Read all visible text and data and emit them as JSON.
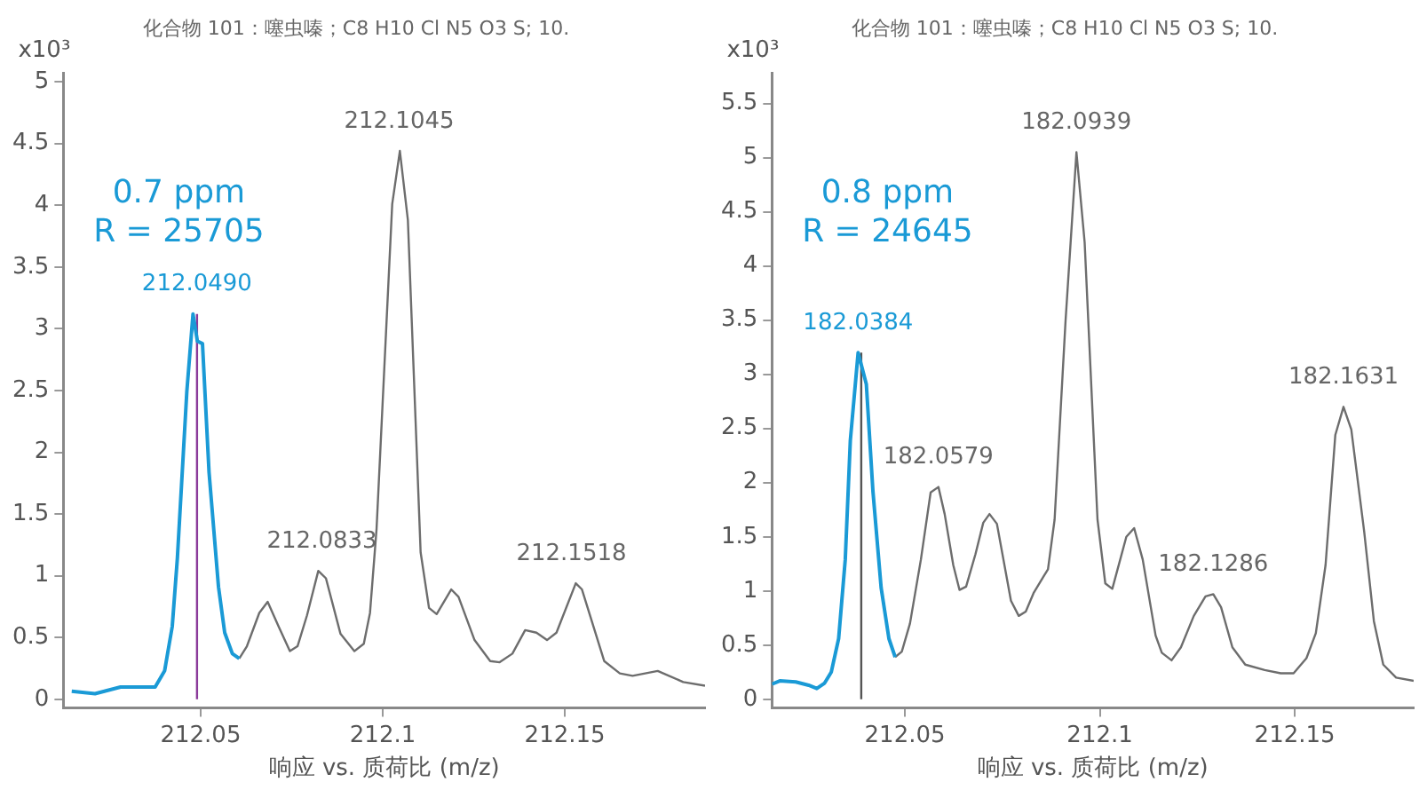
{
  "chart_data": [
    {
      "type": "line",
      "title": "化合物 101：噻虫嗪；C8 H10 Cl N5 O3 S; 10.",
      "xlabel": "响应 vs. 质荷比 (m/z)",
      "ylabel": "x10³",
      "xlim": [
        212.0123,
        212.1885
      ],
      "xticks": [
        212.05,
        212.1,
        212.15
      ],
      "ylim": [
        -0.07,
        5.07
      ],
      "yticks": [
        0,
        0.5,
        1,
        1.5,
        2,
        2.5,
        3,
        3.5,
        4,
        4.5,
        5
      ],
      "grid": false,
      "legend": false,
      "marker": "none",
      "line_style": "solid",
      "series": [
        {
          "color": "#1a9ad6",
          "x": [
            212.0146,
            212.021,
            212.028,
            212.0375,
            212.0401,
            212.0422,
            212.0436,
            212.0462,
            212.0479,
            212.0491,
            212.0505,
            212.0523,
            212.0549,
            212.0566,
            212.0587,
            212.0606
          ],
          "values": [
            0.065,
            0.046,
            0.1,
            0.1,
            0.23,
            0.59,
            1.14,
            2.49,
            3.12,
            2.9,
            2.88,
            1.84,
            0.91,
            0.54,
            0.37,
            0.33
          ]
        },
        {
          "color": "#6d6d6d",
          "x": [
            212.0606,
            212.0627,
            212.0661,
            212.0684,
            212.0714,
            212.0745,
            212.0766,
            212.0792,
            212.0823,
            212.0844,
            212.0884,
            212.0922,
            212.0948,
            212.0965,
            212.0983,
            212.1026,
            212.1047,
            212.1069,
            212.1104,
            212.1127,
            212.1148,
            212.1188,
            212.1208,
            212.1252,
            212.1295,
            212.1321,
            212.1356,
            212.1391,
            212.1422,
            212.1451,
            212.1477,
            212.153,
            212.1547,
            212.1608,
            212.1651,
            212.1686,
            212.1755,
            212.1825,
            212.1885
          ],
          "values": [
            0.33,
            0.43,
            0.7,
            0.79,
            0.59,
            0.39,
            0.43,
            0.68,
            1.04,
            0.98,
            0.53,
            0.39,
            0.45,
            0.7,
            1.38,
            4.01,
            4.44,
            3.88,
            1.19,
            0.74,
            0.69,
            0.89,
            0.83,
            0.48,
            0.31,
            0.3,
            0.37,
            0.56,
            0.54,
            0.48,
            0.54,
            0.94,
            0.89,
            0.31,
            0.21,
            0.19,
            0.23,
            0.14,
            0.11
          ]
        }
      ],
      "ref_lines": [
        {
          "axis": "x",
          "value": 212.049,
          "color": "#8b3a9a"
        }
      ],
      "annotations": [
        "0.7 ppm",
        "R = 25705",
        {
          "text": "212.0490",
          "x": 212.049,
          "y": 3.12
        },
        {
          "text": "212.0833",
          "x": 212.0833,
          "y": 1.04
        },
        {
          "text": "212.1045",
          "x": 212.1045,
          "y": 4.44
        },
        {
          "text": "212.1518",
          "x": 212.1518,
          "y": 0.94
        }
      ]
    },
    {
      "type": "line",
      "title": "化合物 101：噻虫嗪；C8 H10 Cl N5 O3 S; 10.",
      "xlabel": "响应 vs. 质荷比 (m/z)",
      "ylabel": "x10³",
      "xlim": [
        212.0159,
        212.1805
      ],
      "xticks": [
        212.05,
        212.1,
        212.15
      ],
      "ylim": [
        -0.08,
        5.78
      ],
      "yticks": [
        0,
        0.5,
        1,
        1.5,
        2,
        2.5,
        3,
        3.5,
        4,
        4.5,
        5,
        5.5
      ],
      "grid": false,
      "legend": false,
      "marker": "none",
      "line_style": "solid",
      "series": [
        {
          "color": "#1a9ad6",
          "x": [
            212.0159,
            212.0179,
            212.022,
            212.0253,
            212.0274,
            212.0294,
            212.0311,
            212.033,
            212.0347,
            212.036,
            212.038,
            212.0401,
            212.0418,
            212.0439,
            212.0459,
            212.0475
          ],
          "values": [
            0.14,
            0.17,
            0.16,
            0.13,
            0.1,
            0.15,
            0.25,
            0.56,
            1.29,
            2.39,
            3.2,
            2.91,
            1.92,
            1.03,
            0.56,
            0.39
          ]
        },
        {
          "color": "#6d6d6d",
          "x": [
            212.0475,
            212.0492,
            212.0513,
            212.0541,
            212.0566,
            212.0586,
            212.0602,
            212.0624,
            212.064,
            212.0657,
            212.0681,
            212.0701,
            212.0717,
            212.0736,
            212.0772,
            212.0792,
            212.081,
            212.083,
            212.0855,
            212.0867,
            212.0884,
            212.0912,
            212.094,
            212.0961,
            212.0994,
            212.1014,
            212.1032,
            212.1068,
            212.1088,
            212.111,
            212.1143,
            212.1159,
            212.1184,
            212.1208,
            212.1241,
            212.1271,
            212.1291,
            212.1311,
            212.134,
            212.1373,
            212.1423,
            212.1464,
            212.1497,
            212.153,
            212.1554,
            212.1579,
            212.1604,
            212.1625,
            212.1645,
            212.1678,
            212.1703,
            212.1727,
            212.176,
            212.1805
          ],
          "values": [
            0.39,
            0.44,
            0.7,
            1.29,
            1.91,
            1.96,
            1.71,
            1.24,
            1.01,
            1.04,
            1.34,
            1.63,
            1.71,
            1.62,
            0.91,
            0.77,
            0.81,
            0.98,
            1.13,
            1.2,
            1.66,
            3.49,
            5.05,
            4.22,
            1.66,
            1.07,
            1.02,
            1.5,
            1.58,
            1.29,
            0.59,
            0.43,
            0.36,
            0.48,
            0.77,
            0.95,
            0.97,
            0.85,
            0.48,
            0.32,
            0.27,
            0.24,
            0.24,
            0.38,
            0.61,
            1.24,
            2.44,
            2.7,
            2.49,
            1.55,
            0.72,
            0.32,
            0.2,
            0.17
          ]
        }
      ],
      "ref_lines": [
        {
          "axis": "x",
          "value": 212.0388,
          "color": "#555555"
        }
      ],
      "annotations": [
        "0.8 ppm",
        "R = 24645",
        {
          "text": "182.0384",
          "x": 212.038,
          "y": 3.2
        },
        {
          "text": "182.0579",
          "x": 212.0586,
          "y": 1.96
        },
        {
          "text": "182.0939",
          "x": 212.094,
          "y": 5.05
        },
        {
          "text": "182.1286",
          "x": 212.1291,
          "y": 0.97
        },
        {
          "text": "182.1631",
          "x": 212.1625,
          "y": 2.7
        }
      ]
    }
  ]
}
